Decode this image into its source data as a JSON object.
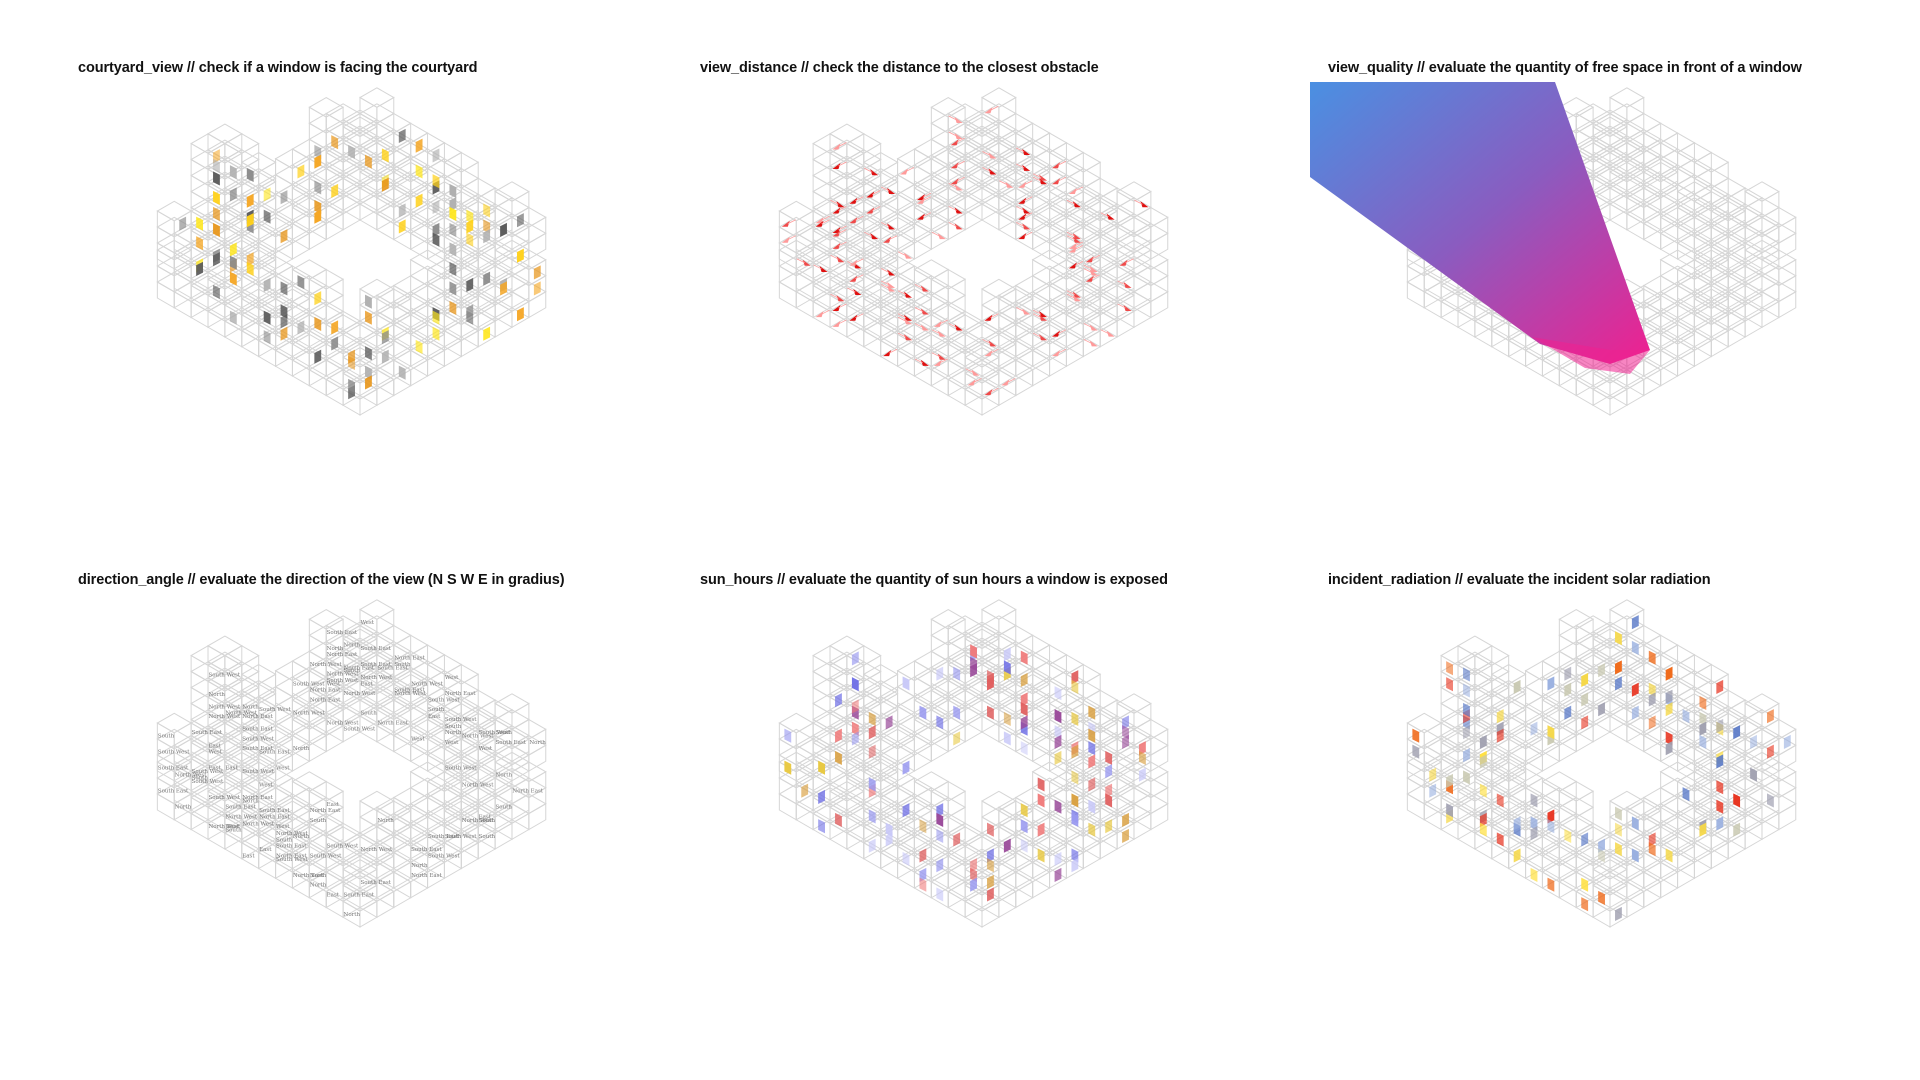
{
  "panels": [
    {
      "id": "courtyard_view",
      "title": "courtyard_view // check if a window is facing the courtyard",
      "mode": "windows",
      "palette": [
        "#ffe61a",
        "#ffd11a",
        "#f5a623",
        "#e8961a",
        "#8a8a8a",
        "#5a5a5a",
        "#b0b0b0"
      ],
      "legend_meaning": {
        "courtyard_facing": "yellow/orange",
        "not_facing": "grey"
      }
    },
    {
      "id": "view_distance",
      "title": "view_distance // check the distance to the closest obstacle",
      "mode": "arrows",
      "palette": [
        "#e01010",
        "#f04a4a",
        "#ff9a9a"
      ]
    },
    {
      "id": "view_quality",
      "title": "view_quality // evaluate the quantity of free space in front of a window",
      "mode": "cone",
      "palette": [
        "#bdbdbd"
      ],
      "cone_gradient": {
        "start": "#4a90e2",
        "mid": "#8a5cc0",
        "end": "#f0208f"
      }
    },
    {
      "id": "direction_angle",
      "title": "direction_angle // evaluate the direction of the view (N S W E in gradius)",
      "mode": "labels",
      "palette": [
        "#777777"
      ],
      "labels": [
        "North",
        "South",
        "West",
        "East",
        "South West",
        "North East",
        "South East",
        "North West"
      ]
    },
    {
      "id": "sun_hours",
      "title": "sun_hours // evaluate the quantity of sun hours a window is exposed",
      "mode": "windows",
      "palette": [
        "#6e6ee6",
        "#9a9af0",
        "#c8c8f8",
        "#f07a7a",
        "#e06060",
        "#d9a040",
        "#e8c840",
        "#9a4a9a"
      ]
    },
    {
      "id": "incident_radiation",
      "title": "incident_radiation // evaluate the incident solar radiation",
      "mode": "windows",
      "palette": [
        "#e8321e",
        "#f06a1a",
        "#ffe040",
        "#f5d84a",
        "#5a7ac8",
        "#9ab0e0",
        "#c8c8b0",
        "#a0a0b0"
      ]
    }
  ]
}
